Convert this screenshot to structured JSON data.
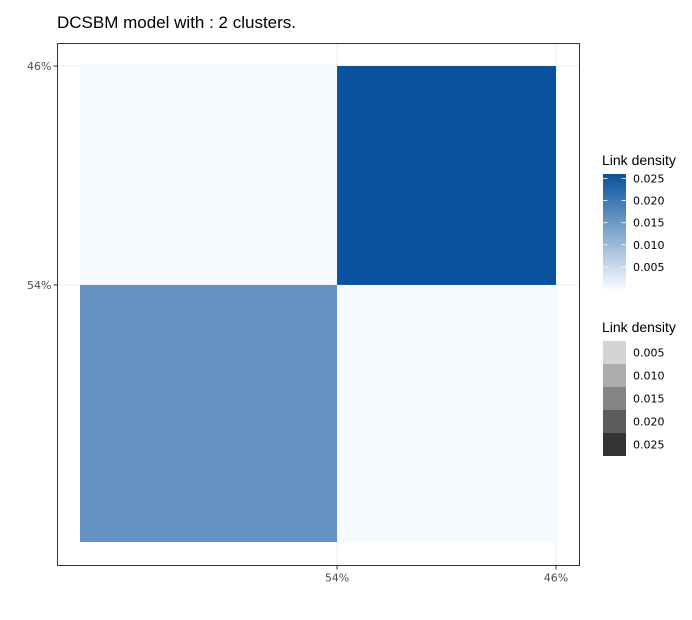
{
  "chart_data": {
    "type": "heatmap",
    "title": "DCSBM model with : 2 clusters.",
    "xlabel": "",
    "ylabel": "",
    "x_ticks": [
      "54%",
      "46%"
    ],
    "y_ticks": [
      "46%",
      "54%"
    ],
    "x_groups": [
      {
        "label": "54%",
        "share": 0.54
      },
      {
        "label": "46%",
        "share": 0.46
      }
    ],
    "y_groups": [
      {
        "label": "46%",
        "share": 0.46
      },
      {
        "label": "54%",
        "share": 0.54
      }
    ],
    "cells": [
      {
        "row": 0,
        "col": 0,
        "value": 0.0
      },
      {
        "row": 0,
        "col": 1,
        "value": 0.026
      },
      {
        "row": 1,
        "col": 0,
        "value": 0.016
      },
      {
        "row": 1,
        "col": 1,
        "value": 0.0
      }
    ],
    "color_scale": {
      "low": "#f7fbff",
      "high": "#08519c",
      "min": 0.0,
      "max": 0.026
    },
    "legends": [
      {
        "title": "Link density",
        "kind": "colorbar",
        "labels": [
          "0.025",
          "0.020",
          "0.015",
          "0.010",
          "0.005"
        ],
        "values": [
          0.025,
          0.02,
          0.015,
          0.01,
          0.005
        ]
      },
      {
        "title": "Link density",
        "kind": "discrete",
        "labels": [
          "0.005",
          "0.010",
          "0.015",
          "0.020",
          "0.025"
        ],
        "colors": [
          "#d4d4d4",
          "#acacac",
          "#858585",
          "#5c5c5c",
          "#333333"
        ]
      }
    ],
    "grid": true
  }
}
